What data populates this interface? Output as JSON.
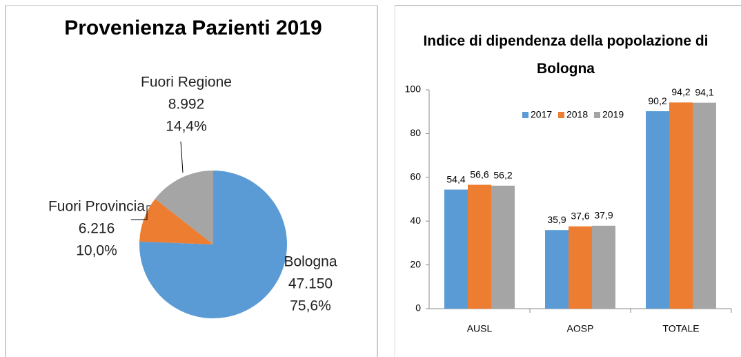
{
  "chart_data": [
    {
      "type": "pie",
      "title": "Provenienza Pazienti 2019",
      "categories": [
        "Bologna",
        "Fuori Provincia",
        "Fuori Regione"
      ],
      "values": [
        47150,
        6216,
        8992
      ],
      "value_labels": [
        "47.150",
        "6.216",
        "8.992"
      ],
      "percentages": [
        75.6,
        10.0,
        14.4
      ],
      "percentage_labels": [
        "75,6%",
        "10,0%",
        "14,4%"
      ],
      "colors": [
        "#5b9bd5",
        "#ed7d31",
        "#a5a5a5"
      ]
    },
    {
      "type": "bar",
      "title": "Indice di dipendenza della popolazione di Bologna",
      "categories": [
        "AUSL",
        "AOSP",
        "TOTALE"
      ],
      "series": [
        {
          "name": "2017",
          "color": "#5b9bd5",
          "values": [
            54.4,
            35.9,
            90.2
          ],
          "value_labels": [
            "54,4",
            "35,9",
            "90,2"
          ]
        },
        {
          "name": "2018",
          "color": "#ed7d31",
          "values": [
            56.6,
            37.6,
            94.2
          ],
          "value_labels": [
            "56,6",
            "37,6",
            "94,2"
          ]
        },
        {
          "name": "2019",
          "color": "#a5a5a5",
          "values": [
            56.2,
            37.9,
            94.1
          ],
          "value_labels": [
            "56,2",
            "37,9",
            "94,1"
          ]
        }
      ],
      "ylim": [
        0,
        100
      ],
      "yticks": [
        0,
        20,
        40,
        60,
        80,
        100
      ],
      "legend": "top"
    }
  ]
}
